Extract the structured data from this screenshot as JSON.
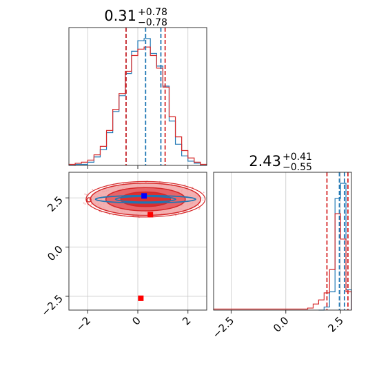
{
  "chart_data": [
    {
      "type": "histogram",
      "panel": "top-left",
      "title": {
        "value": "0.31",
        "plus": "+0.78",
        "minus": "−0.78"
      },
      "xlim": [
        -2.75,
        2.75
      ],
      "grid": true,
      "tick_labels_shown": false,
      "series": [
        {
          "color": "#1f77b4",
          "bin_edges": [
            -2.75,
            -2.5,
            -2.25,
            -2.0,
            -1.75,
            -1.5,
            -1.25,
            -1.0,
            -0.75,
            -0.5,
            -0.25,
            0.0,
            0.25,
            0.5,
            0.75,
            1.0,
            1.25,
            1.5,
            1.75,
            2.0,
            2.25,
            2.5,
            2.75
          ],
          "values": [
            0,
            1,
            1,
            3,
            8,
            15,
            31,
            51,
            66,
            87,
            108,
            118,
            120,
            106,
            94,
            75,
            42,
            20,
            9,
            4,
            2,
            0
          ],
          "vlines": [
            {
              "x": -0.47,
              "style": "dashed"
            },
            {
              "x": 0.31,
              "style": "dashed"
            },
            {
              "x": 0.92,
              "style": "dashed"
            }
          ]
        },
        {
          "color": "#d62728",
          "bin_edges": [
            -2.75,
            -2.5,
            -2.25,
            -2.0,
            -1.75,
            -1.5,
            -1.25,
            -1.0,
            -0.75,
            -0.5,
            -0.25,
            0.0,
            0.25,
            0.5,
            0.75,
            1.0,
            1.25,
            1.5,
            1.75,
            2.0,
            2.25,
            2.5,
            2.75
          ],
          "values": [
            1,
            2,
            3,
            5,
            10,
            18,
            33,
            53,
            68,
            89,
            104,
            110,
            112,
            104,
            92,
            74,
            46,
            27,
            14,
            7,
            3,
            1
          ],
          "vlines": [
            {
              "x": -0.47,
              "style": "dashed"
            },
            {
              "x": 1.09,
              "style": "dashed"
            }
          ]
        }
      ]
    },
    {
      "type": "histogram",
      "panel": "bottom-right",
      "title": {
        "value": "2.43",
        "plus": "+0.41",
        "minus": "−0.55"
      },
      "xlim": [
        -3.3,
        3.0
      ],
      "xticks": [
        -2.5,
        0.0,
        2.5
      ],
      "xtick_labels": [
        "−2.5",
        "0.0",
        "2.5"
      ],
      "grid": true,
      "series": [
        {
          "color": "#1f77b4",
          "bin_edges": [
            1.5,
            1.75,
            2.0,
            2.25,
            2.5,
            2.75,
            3.0
          ],
          "values": [
            0,
            3,
            18,
            110,
            125,
            20
          ],
          "vlines": [
            {
              "x": 2.45,
              "style": "dashed"
            },
            {
              "x": 2.68,
              "style": "dashed"
            }
          ]
        },
        {
          "color": "#d62728",
          "bin_edges": [
            -3.3,
            -2.5,
            -2.0,
            -1.5,
            -1.0,
            -0.5,
            0.0,
            0.5,
            1.0,
            1.25,
            1.5,
            1.75,
            2.0,
            2.25,
            2.5,
            2.75,
            3.0
          ],
          "values": [
            1,
            1,
            1,
            1,
            1,
            1,
            1,
            1,
            2,
            6,
            10,
            17,
            40,
            95,
            70,
            18
          ],
          "vlines": [
            {
              "x": 1.88,
              "style": "dashed"
            },
            {
              "x": 2.84,
              "style": "dashed"
            }
          ]
        }
      ]
    },
    {
      "type": "scatter",
      "panel": "bottom-left",
      "xlim": [
        -2.75,
        2.75
      ],
      "ylim": [
        -3.2,
        3.8
      ],
      "xticks": [
        -2,
        0,
        2
      ],
      "xtick_labels": [
        "−2",
        "0",
        "2"
      ],
      "yticks": [
        -2.5,
        0.0,
        2.5
      ],
      "ytick_labels": [
        "−2.5",
        "0.0",
        "2.5"
      ],
      "grid": true,
      "contours": [
        {
          "color": "#d62728",
          "center": [
            0.31,
            2.43
          ],
          "spread": [
            2.2,
            0.82
          ],
          "fill_levels": [
            0.25,
            0.5,
            1.0
          ]
        },
        {
          "color": "#1f77b4",
          "center": [
            0.31,
            2.43
          ],
          "spread": [
            2.0,
            0.12
          ],
          "fill_levels": []
        }
      ],
      "points": [
        {
          "x": 0.25,
          "y": 2.6,
          "color": "#0000ff",
          "marker": "square"
        },
        {
          "x": 0.5,
          "y": 1.65,
          "color": "#ff0000",
          "marker": "square"
        },
        {
          "x": 0.12,
          "y": -2.6,
          "color": "#ff0000",
          "marker": "square"
        },
        {
          "x": -1.95,
          "y": 2.4,
          "color": "#d62728",
          "marker": "circle"
        }
      ]
    }
  ]
}
